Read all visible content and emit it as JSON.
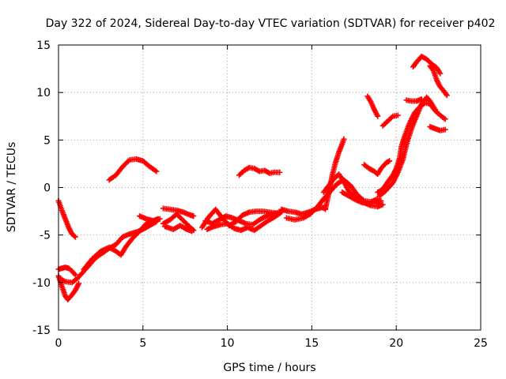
{
  "chart_data": {
    "type": "scatter",
    "title": "Day 322 of 2024, Sidereal Day-to-day VTEC variation (SDTVAR) for receiver p402",
    "xlabel": "GPS time / hours",
    "ylabel": "SDTVAR / TECUs",
    "xlim": [
      0,
      25
    ],
    "ylim": [
      -15,
      15
    ],
    "xticks": [
      "0",
      "5",
      "10",
      "15",
      "20",
      "25"
    ],
    "yticks": [
      "15",
      "10",
      "5",
      "0",
      "-5",
      "-10",
      "-15"
    ],
    "grid": true,
    "marker": "plus",
    "marker_color": "#ff0000",
    "series": [
      {
        "points": [
          [
            0.0,
            -1.4
          ],
          [
            0.2,
            -2.4
          ],
          [
            0.4,
            -3.3
          ],
          [
            0.6,
            -4.2
          ],
          [
            0.8,
            -4.9
          ],
          [
            1.0,
            -5.2
          ]
        ]
      },
      {
        "points": [
          [
            0.0,
            -8.6
          ],
          [
            0.2,
            -8.5
          ],
          [
            0.4,
            -8.4
          ],
          [
            0.6,
            -8.5
          ],
          [
            0.8,
            -8.8
          ],
          [
            1.0,
            -9.2
          ]
        ]
      },
      {
        "points": [
          [
            0.0,
            -9.3
          ],
          [
            0.2,
            -10.4
          ],
          [
            0.4,
            -11.4
          ],
          [
            0.55,
            -11.8
          ],
          [
            0.8,
            -11.3
          ],
          [
            1.0,
            -10.8
          ],
          [
            1.2,
            -10.1
          ]
        ]
      },
      {
        "points": [
          [
            0.1,
            -9.6
          ],
          [
            0.4,
            -9.9
          ],
          [
            0.8,
            -10.0
          ],
          [
            1.1,
            -9.6
          ],
          [
            1.4,
            -9.0
          ],
          [
            1.8,
            -8.2
          ],
          [
            2.2,
            -7.4
          ],
          [
            2.6,
            -6.9
          ],
          [
            3.0,
            -6.4
          ],
          [
            3.4,
            -6.0
          ],
          [
            3.8,
            -5.2
          ],
          [
            4.2,
            -4.9
          ],
          [
            4.6,
            -4.7
          ],
          [
            5.0,
            -4.4
          ],
          [
            5.4,
            -4.0
          ],
          [
            5.8,
            -3.6
          ]
        ]
      },
      {
        "points": [
          [
            1.5,
            -8.6
          ],
          [
            2.0,
            -7.5
          ],
          [
            2.5,
            -6.7
          ],
          [
            3.0,
            -6.3
          ],
          [
            3.4,
            -6.7
          ],
          [
            3.7,
            -7.1
          ],
          [
            4.0,
            -6.2
          ],
          [
            4.4,
            -5.3
          ],
          [
            4.8,
            -4.6
          ],
          [
            5.2,
            -3.8
          ],
          [
            5.6,
            -3.5
          ],
          [
            6.0,
            -3.3
          ]
        ]
      },
      {
        "points": [
          [
            3.0,
            0.8
          ],
          [
            3.4,
            1.3
          ],
          [
            3.8,
            2.2
          ],
          [
            4.2,
            2.9
          ],
          [
            4.6,
            3.0
          ],
          [
            5.0,
            2.8
          ],
          [
            5.4,
            2.2
          ],
          [
            5.8,
            1.7
          ]
        ]
      },
      {
        "points": [
          [
            4.8,
            -3.0
          ],
          [
            5.2,
            -3.3
          ],
          [
            5.6,
            -3.5
          ],
          [
            5.9,
            -3.3
          ]
        ]
      },
      {
        "points": [
          [
            6.2,
            -2.2
          ],
          [
            6.6,
            -2.3
          ],
          [
            7.0,
            -2.4
          ],
          [
            7.4,
            -2.6
          ],
          [
            7.8,
            -2.9
          ],
          [
            8.0,
            -3.0
          ]
        ]
      },
      {
        "points": [
          [
            6.2,
            -3.8
          ],
          [
            6.6,
            -3.4
          ],
          [
            7.0,
            -2.8
          ],
          [
            7.4,
            -3.5
          ],
          [
            7.8,
            -4.2
          ],
          [
            8.0,
            -4.5
          ]
        ]
      },
      {
        "points": [
          [
            6.3,
            -4.1
          ],
          [
            6.8,
            -4.4
          ],
          [
            7.2,
            -4.0
          ],
          [
            7.6,
            -4.4
          ],
          [
            7.9,
            -4.6
          ]
        ]
      },
      {
        "points": [
          [
            8.5,
            -4.2
          ],
          [
            8.9,
            -3.1
          ],
          [
            9.3,
            -2.3
          ],
          [
            9.7,
            -3.2
          ],
          [
            10.1,
            -4.0
          ],
          [
            10.5,
            -3.6
          ],
          [
            10.9,
            -2.9
          ],
          [
            11.3,
            -2.6
          ],
          [
            11.7,
            -2.5
          ],
          [
            12.1,
            -2.5
          ],
          [
            12.5,
            -2.6
          ],
          [
            12.9,
            -2.7
          ]
        ]
      },
      {
        "points": [
          [
            8.7,
            -3.5
          ],
          [
            9.1,
            -3.8
          ],
          [
            9.5,
            -3.4
          ],
          [
            9.9,
            -3.0
          ],
          [
            10.3,
            -3.2
          ],
          [
            10.7,
            -3.5
          ],
          [
            11.1,
            -3.8
          ],
          [
            11.5,
            -3.9
          ],
          [
            11.9,
            -3.4
          ],
          [
            12.3,
            -3.0
          ],
          [
            12.7,
            -2.8
          ],
          [
            13.1,
            -2.6
          ]
        ]
      },
      {
        "points": [
          [
            8.8,
            -4.4
          ],
          [
            9.2,
            -4.1
          ],
          [
            9.6,
            -3.9
          ],
          [
            10.0,
            -3.8
          ],
          [
            10.4,
            -4.3
          ],
          [
            10.8,
            -4.5
          ],
          [
            11.2,
            -4.2
          ],
          [
            11.6,
            -4.5
          ],
          [
            12.0,
            -4.0
          ],
          [
            12.4,
            -3.5
          ],
          [
            12.8,
            -3.1
          ],
          [
            13.2,
            -2.6
          ]
        ]
      },
      {
        "points": [
          [
            10.7,
            1.3
          ],
          [
            11.0,
            1.8
          ],
          [
            11.3,
            2.1
          ],
          [
            11.6,
            2.0
          ],
          [
            11.9,
            1.7
          ],
          [
            12.2,
            1.8
          ],
          [
            12.5,
            1.5
          ],
          [
            12.8,
            1.6
          ],
          [
            13.1,
            1.6
          ]
        ]
      },
      {
        "points": [
          [
            13.2,
            -2.3
          ],
          [
            13.6,
            -2.5
          ],
          [
            14.0,
            -2.6
          ],
          [
            14.4,
            -2.8
          ],
          [
            14.8,
            -2.6
          ],
          [
            15.2,
            -2.3
          ],
          [
            15.6,
            -2.1
          ],
          [
            15.8,
            -2.2
          ]
        ]
      },
      {
        "points": [
          [
            13.5,
            -3.2
          ],
          [
            14.0,
            -3.4
          ],
          [
            14.5,
            -3.2
          ],
          [
            14.9,
            -2.8
          ],
          [
            15.3,
            -2.1
          ],
          [
            15.7,
            -1.2
          ],
          [
            16.1,
            -0.4
          ],
          [
            16.5,
            0.4
          ],
          [
            16.9,
            0.8
          ],
          [
            17.3,
            0.2
          ],
          [
            17.7,
            -0.8
          ],
          [
            18.1,
            -1.4
          ],
          [
            18.5,
            -1.5
          ],
          [
            18.9,
            -1.2
          ]
        ]
      },
      {
        "points": [
          [
            15.8,
            -2.3
          ],
          [
            16.0,
            -0.6
          ],
          [
            16.2,
            1.2
          ],
          [
            16.4,
            2.6
          ],
          [
            16.6,
            3.7
          ],
          [
            16.8,
            4.6
          ],
          [
            16.9,
            5.1
          ]
        ]
      },
      {
        "points": [
          [
            15.7,
            -0.5
          ],
          [
            16.0,
            0.2
          ],
          [
            16.3,
            0.9
          ],
          [
            16.6,
            1.4
          ],
          [
            16.9,
            0.6
          ],
          [
            17.2,
            -0.4
          ],
          [
            17.5,
            -1.0
          ],
          [
            17.8,
            -1.3
          ],
          [
            18.1,
            -1.6
          ],
          [
            18.5,
            -1.9
          ],
          [
            18.9,
            -2.0
          ],
          [
            19.2,
            -1.8
          ]
        ]
      },
      {
        "points": [
          [
            16.8,
            -0.5
          ],
          [
            17.2,
            -0.9
          ],
          [
            17.6,
            -1.3
          ],
          [
            18.0,
            -1.6
          ],
          [
            18.4,
            -1.7
          ],
          [
            18.8,
            -1.6
          ],
          [
            19.1,
            -1.4
          ]
        ]
      },
      {
        "points": [
          [
            18.1,
            2.4
          ],
          [
            18.4,
            2.0
          ],
          [
            18.7,
            1.7
          ],
          [
            18.9,
            1.4
          ],
          [
            19.1,
            2.0
          ],
          [
            19.4,
            2.6
          ],
          [
            19.6,
            2.8
          ]
        ]
      },
      {
        "points": [
          [
            18.3,
            9.6
          ],
          [
            18.5,
            9.0
          ],
          [
            18.7,
            8.2
          ],
          [
            18.9,
            7.5
          ]
        ]
      },
      {
        "points": [
          [
            19.2,
            6.5
          ],
          [
            19.5,
            7.0
          ],
          [
            19.8,
            7.5
          ],
          [
            20.1,
            7.6
          ]
        ]
      },
      {
        "points": [
          [
            18.9,
            -0.5
          ],
          [
            19.2,
            -0.2
          ],
          [
            19.5,
            0.6
          ],
          [
            19.8,
            1.3
          ],
          [
            20.0,
            2.0
          ],
          [
            20.2,
            3.1
          ],
          [
            20.3,
            4.3
          ],
          [
            20.5,
            5.4
          ],
          [
            20.7,
            6.4
          ],
          [
            20.9,
            7.2
          ],
          [
            21.1,
            7.9
          ],
          [
            21.4,
            8.5
          ],
          [
            21.7,
            8.9
          ],
          [
            22.0,
            8.8
          ],
          [
            22.3,
            8.1
          ],
          [
            22.6,
            7.6
          ],
          [
            22.9,
            7.2
          ]
        ]
      },
      {
        "points": [
          [
            19.0,
            -0.9
          ],
          [
            19.4,
            -0.3
          ],
          [
            19.8,
            0.5
          ],
          [
            20.1,
            1.6
          ],
          [
            20.4,
            3.0
          ],
          [
            20.6,
            4.5
          ],
          [
            20.9,
            6.2
          ],
          [
            21.2,
            7.5
          ],
          [
            21.5,
            8.8
          ],
          [
            21.8,
            9.5
          ],
          [
            22.0,
            9.1
          ],
          [
            22.3,
            8.2
          ]
        ]
      },
      {
        "points": [
          [
            20.6,
            9.2
          ],
          [
            20.9,
            9.1
          ],
          [
            21.2,
            9.1
          ],
          [
            21.5,
            9.3
          ]
        ]
      },
      {
        "points": [
          [
            21.0,
            12.7
          ],
          [
            21.2,
            13.2
          ],
          [
            21.5,
            13.8
          ],
          [
            21.8,
            13.5
          ],
          [
            22.1,
            13.0
          ],
          [
            22.4,
            12.6
          ],
          [
            22.6,
            12.0
          ]
        ]
      },
      {
        "points": [
          [
            22.0,
            12.8
          ],
          [
            22.2,
            12.3
          ],
          [
            22.4,
            11.3
          ],
          [
            22.6,
            10.6
          ],
          [
            22.8,
            10.2
          ],
          [
            23.0,
            9.7
          ]
        ]
      },
      {
        "points": [
          [
            22.0,
            6.4
          ],
          [
            22.3,
            6.2
          ],
          [
            22.6,
            6.0
          ],
          [
            22.9,
            6.1
          ]
        ]
      }
    ]
  }
}
